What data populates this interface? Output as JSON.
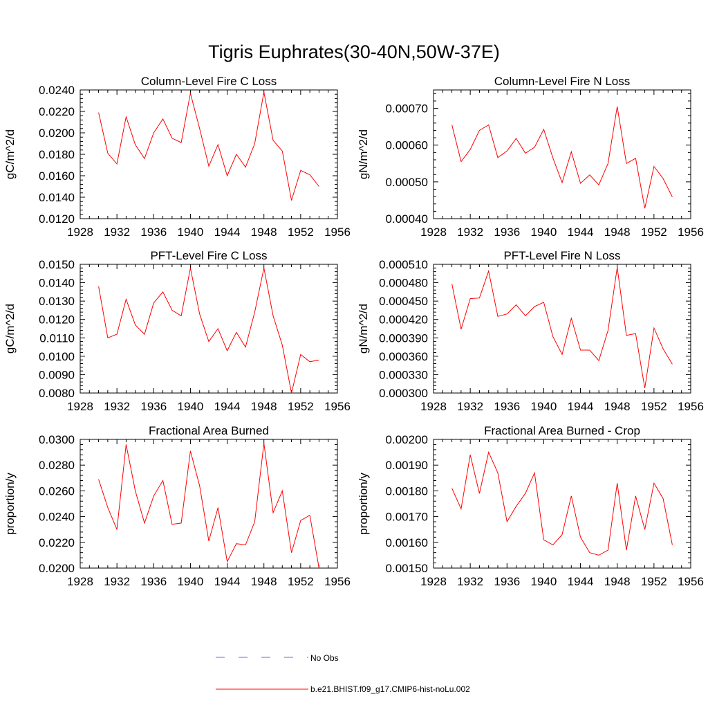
{
  "figure": {
    "title": "Tigris Euphrates(30-40N,50W-37E)"
  },
  "legend": {
    "entries": [
      {
        "label": "No Obs",
        "color": "#6a6ad8",
        "style": "dashed"
      },
      {
        "label": "b.e21.BHIST.f09_g17.CMIP6-hist-noLu.002",
        "color": "#ff0000",
        "style": "solid"
      }
    ]
  },
  "colors": {
    "series": "#ff0000",
    "axis": "#000000"
  },
  "chart_data": [
    {
      "type": "line",
      "title": "Column-Level Fire C Loss",
      "xlabel": "",
      "ylabel": "gC/m^2/d",
      "xlim": [
        1928,
        1956
      ],
      "ylim": [
        0.012,
        0.024
      ],
      "xticks": [
        "1928",
        "1932",
        "1936",
        "1940",
        "1944",
        "1948",
        "1952",
        "1956"
      ],
      "yticks": [
        "0.0120",
        "0.0140",
        "0.0160",
        "0.0180",
        "0.0200",
        "0.0220",
        "0.0240"
      ],
      "x": [
        1930,
        1931,
        1932,
        1933,
        1934,
        1935,
        1936,
        1937,
        1938,
        1939,
        1940,
        1941,
        1942,
        1943,
        1944,
        1945,
        1946,
        1947,
        1948,
        1949,
        1950,
        1951,
        1952,
        1953,
        1954
      ],
      "series": [
        {
          "name": "b.e21.BHIST.f09_g17.CMIP6-hist-noLu.002",
          "values": [
            0.0219,
            0.0181,
            0.0171,
            0.0215,
            0.0189,
            0.0176,
            0.02,
            0.0213,
            0.0195,
            0.0191,
            0.0237,
            0.0204,
            0.0169,
            0.0189,
            0.016,
            0.018,
            0.0168,
            0.019,
            0.0238,
            0.0193,
            0.0183,
            0.0137,
            0.0165,
            0.0161,
            0.015
          ]
        }
      ],
      "grid": false
    },
    {
      "type": "line",
      "title": "Column-Level Fire N Loss",
      "xlabel": "",
      "ylabel": "gN/m^2/d",
      "xlim": [
        1928,
        1956
      ],
      "ylim": [
        0.0004,
        0.00075
      ],
      "xticks": [
        "1928",
        "1932",
        "1936",
        "1940",
        "1944",
        "1948",
        "1952",
        "1956"
      ],
      "yticks": [
        "0.00040",
        "0.00050",
        "0.00060",
        "0.00070"
      ],
      "x": [
        1930,
        1931,
        1932,
        1933,
        1934,
        1935,
        1936,
        1937,
        1938,
        1939,
        1940,
        1941,
        1942,
        1943,
        1944,
        1945,
        1946,
        1947,
        1948,
        1949,
        1950,
        1951,
        1952,
        1953,
        1954
      ],
      "series": [
        {
          "name": "b.e21.BHIST.f09_g17.CMIP6-hist-noLu.002",
          "values": [
            0.000655,
            0.000555,
            0.000588,
            0.00064,
            0.000655,
            0.000566,
            0.000584,
            0.000618,
            0.000578,
            0.000594,
            0.000643,
            0.000565,
            0.000498,
            0.000582,
            0.000496,
            0.000519,
            0.000492,
            0.00055,
            0.000705,
            0.00055,
            0.000564,
            0.000428,
            0.000542,
            0.000509,
            0.000459
          ]
        }
      ],
      "grid": false
    },
    {
      "type": "line",
      "title": "PFT-Level Fire C Loss",
      "xlabel": "",
      "ylabel": "gC/m^2/d",
      "xlim": [
        1928,
        1956
      ],
      "ylim": [
        0.008,
        0.015
      ],
      "xticks": [
        "1928",
        "1932",
        "1936",
        "1940",
        "1944",
        "1948",
        "1952",
        "1956"
      ],
      "yticks": [
        "0.0080",
        "0.0090",
        "0.0100",
        "0.0110",
        "0.0120",
        "0.0130",
        "0.0140",
        "0.0150"
      ],
      "x": [
        1930,
        1931,
        1932,
        1933,
        1934,
        1935,
        1936,
        1937,
        1938,
        1939,
        1940,
        1941,
        1942,
        1943,
        1944,
        1945,
        1946,
        1947,
        1948,
        1949,
        1950,
        1951,
        1952,
        1953,
        1954
      ],
      "series": [
        {
          "name": "b.e21.BHIST.f09_g17.CMIP6-hist-noLu.002",
          "values": [
            0.0138,
            0.011,
            0.0112,
            0.0131,
            0.0117,
            0.0112,
            0.0129,
            0.0135,
            0.0125,
            0.0122,
            0.0148,
            0.0123,
            0.0108,
            0.0115,
            0.0103,
            0.0113,
            0.0105,
            0.0124,
            0.0148,
            0.0122,
            0.0106,
            0.008,
            0.0101,
            0.0097,
            0.0098
          ]
        }
      ],
      "grid": false
    },
    {
      "type": "line",
      "title": "PFT-Level Fire N Loss",
      "xlabel": "",
      "ylabel": "gN/m^2/d",
      "xlim": [
        1928,
        1956
      ],
      "ylim": [
        0.0003,
        0.00051
      ],
      "xticks": [
        "1928",
        "1932",
        "1936",
        "1940",
        "1944",
        "1948",
        "1952",
        "1956"
      ],
      "yticks": [
        "0.000300",
        "0.000330",
        "0.000360",
        "0.000390",
        "0.000420",
        "0.000450",
        "0.000480",
        "0.000510"
      ],
      "x": [
        1930,
        1931,
        1932,
        1933,
        1934,
        1935,
        1936,
        1937,
        1938,
        1939,
        1940,
        1941,
        1942,
        1943,
        1944,
        1945,
        1946,
        1947,
        1948,
        1949,
        1950,
        1951,
        1952,
        1953,
        1954
      ],
      "series": [
        {
          "name": "b.e21.BHIST.f09_g17.CMIP6-hist-noLu.002",
          "values": [
            0.000478,
            0.000404,
            0.000454,
            0.000455,
            0.000499,
            0.000425,
            0.000429,
            0.000444,
            0.000426,
            0.000441,
            0.000448,
            0.000392,
            0.000363,
            0.000422,
            0.00037,
            0.00037,
            0.000353,
            0.000402,
            0.000505,
            0.000394,
            0.000397,
            0.000308,
            0.000406,
            0.000372,
            0.000347
          ]
        }
      ],
      "grid": false
    },
    {
      "type": "line",
      "title": "Fractional Area Burned",
      "xlabel": "",
      "ylabel": "proportion/y",
      "xlim": [
        1928,
        1956
      ],
      "ylim": [
        0.02,
        0.03
      ],
      "xticks": [
        "1928",
        "1932",
        "1936",
        "1940",
        "1944",
        "1948",
        "1952",
        "1956"
      ],
      "yticks": [
        "0.0200",
        "0.0220",
        "0.0240",
        "0.0260",
        "0.0280",
        "0.0300"
      ],
      "x": [
        1930,
        1931,
        1932,
        1933,
        1934,
        1935,
        1936,
        1937,
        1938,
        1939,
        1940,
        1941,
        1942,
        1943,
        1944,
        1945,
        1946,
        1947,
        1948,
        1949,
        1950,
        1951,
        1952,
        1953,
        1954
      ],
      "series": [
        {
          "name": "b.e21.BHIST.f09_g17.CMIP6-hist-noLu.002",
          "values": [
            0.0269,
            0.0247,
            0.023,
            0.0296,
            0.026,
            0.0235,
            0.0256,
            0.0268,
            0.0234,
            0.0235,
            0.0291,
            0.0264,
            0.0221,
            0.0247,
            0.0205,
            0.0219,
            0.0218,
            0.0236,
            0.0297,
            0.0243,
            0.026,
            0.0212,
            0.0237,
            0.0241,
            0.02
          ]
        }
      ],
      "grid": false
    },
    {
      "type": "line",
      "title": "Fractional Area Burned - Crop",
      "xlabel": "",
      "ylabel": "proportion/y",
      "xlim": [
        1928,
        1956
      ],
      "ylim": [
        0.0015,
        0.002
      ],
      "xticks": [
        "1928",
        "1932",
        "1936",
        "1940",
        "1944",
        "1948",
        "1952",
        "1956"
      ],
      "yticks": [
        "0.00150",
        "0.00160",
        "0.00170",
        "0.00180",
        "0.00190",
        "0.00200"
      ],
      "x": [
        1930,
        1931,
        1932,
        1933,
        1934,
        1935,
        1936,
        1937,
        1938,
        1939,
        1940,
        1941,
        1942,
        1943,
        1944,
        1945,
        1946,
        1947,
        1948,
        1949,
        1950,
        1951,
        1952,
        1953,
        1954
      ],
      "series": [
        {
          "name": "b.e21.BHIST.f09_g17.CMIP6-hist-noLu.002",
          "values": [
            0.00181,
            0.00173,
            0.00194,
            0.00179,
            0.00195,
            0.00187,
            0.00168,
            0.00174,
            0.00179,
            0.00187,
            0.00161,
            0.00159,
            0.00163,
            0.00178,
            0.00162,
            0.00156,
            0.00155,
            0.00157,
            0.00183,
            0.00157,
            0.00178,
            0.00165,
            0.00183,
            0.00177,
            0.00159
          ]
        }
      ],
      "grid": false
    }
  ]
}
